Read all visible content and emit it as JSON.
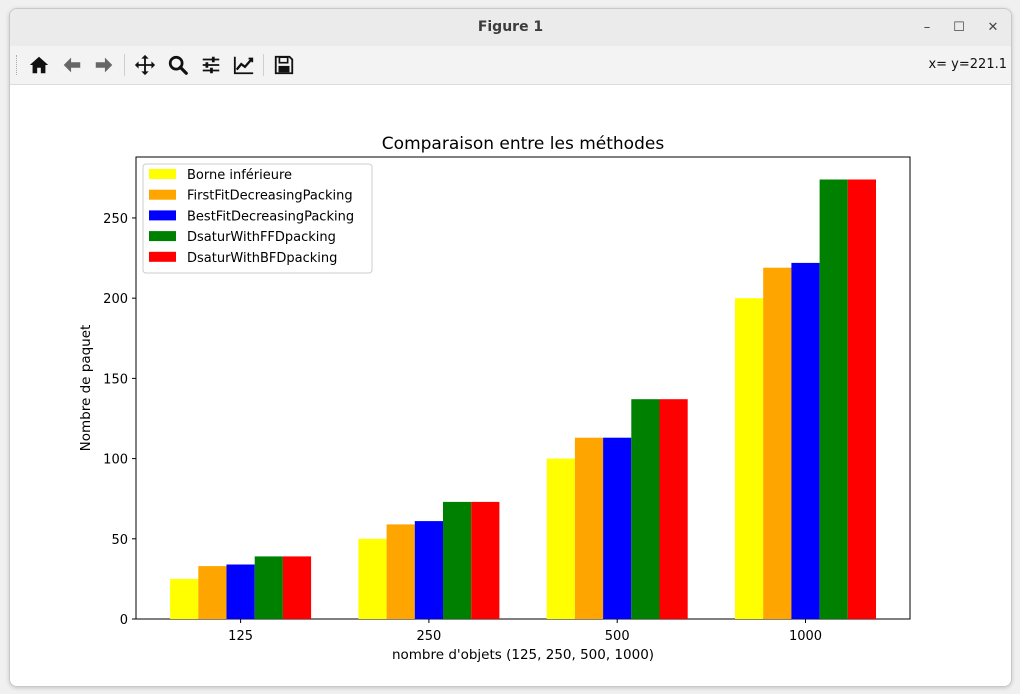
{
  "window": {
    "title": "Figure 1",
    "minimize_glyph": "–",
    "maximize_glyph": "☐",
    "close_glyph": "✕"
  },
  "toolbar": {
    "buttons": [
      {
        "name": "home",
        "icon": "home-icon"
      },
      {
        "name": "back",
        "icon": "arrow-left-icon"
      },
      {
        "name": "forward",
        "icon": "arrow-right-icon"
      },
      {
        "name": "pan",
        "icon": "move-icon"
      },
      {
        "name": "zoom",
        "icon": "zoom-icon"
      },
      {
        "name": "configure-subplots",
        "icon": "sliders-icon"
      },
      {
        "name": "edit-axis",
        "icon": "line-chart-icon"
      },
      {
        "name": "save",
        "icon": "save-icon"
      }
    ],
    "coords_text": "x= y=221.1"
  },
  "chart_data": {
    "type": "bar",
    "title": "Comparaison entre les méthodes",
    "xlabel": "nombre d'objets (125, 250, 500, 1000)",
    "ylabel": "Nombre de paquet",
    "categories": [
      "125",
      "250",
      "500",
      "1000"
    ],
    "ylim": [
      0,
      288
    ],
    "yticks": [
      0,
      50,
      100,
      150,
      200,
      250
    ],
    "grid": false,
    "legend_position": "upper left",
    "series": [
      {
        "name": "Borne inférieure",
        "color": "#ffff00",
        "values": [
          25,
          50,
          100,
          200
        ]
      },
      {
        "name": "FirstFitDecreasingPacking",
        "color": "#ffa500",
        "values": [
          33,
          59,
          113,
          219
        ]
      },
      {
        "name": "BestFitDecreasingPacking",
        "color": "#0000ff",
        "values": [
          34,
          61,
          113,
          222
        ]
      },
      {
        "name": "DsaturWithFFDpacking",
        "color": "#008000",
        "values": [
          39,
          73,
          137,
          274
        ]
      },
      {
        "name": "DsaturWithBFDpacking",
        "color": "#ff0000",
        "values": [
          39,
          73,
          137,
          274
        ]
      }
    ]
  }
}
